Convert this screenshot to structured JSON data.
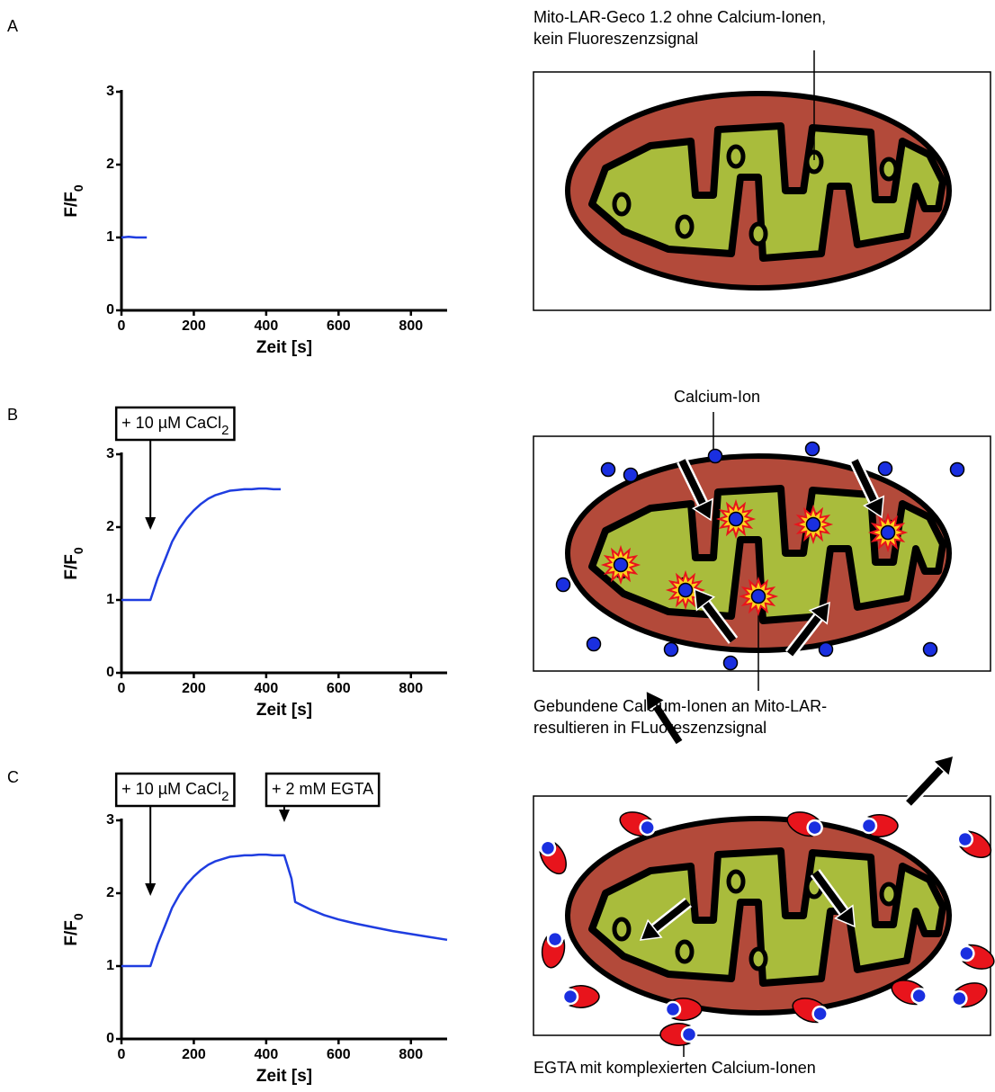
{
  "panel_labels": [
    "A",
    "B",
    "C"
  ],
  "chart_data": [
    {
      "type": "line",
      "xlabel": "Zeit [s]",
      "ylabel": "F/F",
      "ylabel_sub": "0",
      "xlim": [
        0,
        900
      ],
      "xticks": [
        0,
        200,
        400,
        600,
        800
      ],
      "ylim": [
        0,
        3
      ],
      "yticks": [
        0,
        1,
        2,
        3
      ],
      "series": [
        {
          "color": "#1f3de0",
          "x": [
            0,
            20,
            40,
            60,
            70
          ],
          "values": [
            1,
            1.01,
            1,
            1,
            1
          ]
        }
      ],
      "annotations": []
    },
    {
      "type": "line",
      "xlabel": "Zeit [s]",
      "ylabel": "F/F",
      "ylabel_sub": "0",
      "xlim": [
        0,
        900
      ],
      "xticks": [
        0,
        200,
        400,
        600,
        800
      ],
      "ylim": [
        0,
        3
      ],
      "yticks": [
        0,
        1,
        2,
        3
      ],
      "series": [
        {
          "color": "#1f3de0",
          "x": [
            0,
            40,
            80,
            100,
            120,
            140,
            160,
            180,
            200,
            220,
            240,
            260,
            280,
            300,
            320,
            340,
            360,
            380,
            400,
            420,
            440
          ],
          "values": [
            1,
            1,
            1,
            1.3,
            1.55,
            1.8,
            1.98,
            2.12,
            2.23,
            2.32,
            2.39,
            2.44,
            2.47,
            2.5,
            2.51,
            2.52,
            2.52,
            2.53,
            2.53,
            2.52,
            2.52
          ]
        }
      ],
      "annotations": [
        {
          "text": "+ 10 µM CaCl",
          "sub": "2",
          "x": 80
        }
      ]
    },
    {
      "type": "line",
      "xlabel": "Zeit [s]",
      "ylabel": "F/F",
      "ylabel_sub": "0",
      "xlim": [
        0,
        900
      ],
      "xticks": [
        0,
        200,
        400,
        600,
        800
      ],
      "ylim": [
        0,
        3
      ],
      "yticks": [
        0,
        1,
        2,
        3
      ],
      "series": [
        {
          "color": "#1f3de0",
          "x": [
            0,
            40,
            80,
            100,
            120,
            140,
            160,
            180,
            200,
            220,
            240,
            260,
            280,
            300,
            320,
            340,
            360,
            380,
            400,
            420,
            440,
            450,
            470,
            480,
            520,
            560,
            600,
            650,
            700,
            750,
            800,
            850,
            900
          ],
          "values": [
            1,
            1,
            1,
            1.3,
            1.55,
            1.8,
            1.98,
            2.12,
            2.23,
            2.32,
            2.39,
            2.44,
            2.47,
            2.5,
            2.51,
            2.52,
            2.52,
            2.53,
            2.53,
            2.52,
            2.52,
            2.52,
            2.2,
            1.88,
            1.78,
            1.7,
            1.64,
            1.58,
            1.53,
            1.48,
            1.44,
            1.4,
            1.36
          ]
        }
      ],
      "annotations": [
        {
          "text": "+ 10 µM CaCl",
          "sub": "2",
          "x": 80
        },
        {
          "text": "+ 2 mM EGTA",
          "x": 450
        }
      ]
    }
  ],
  "diagrams": [
    {
      "top_text": [
        "Mito-LAR-Geco 1.2 ohne Calcium-Ionen,",
        "kein Fluoreszenzsignal"
      ]
    },
    {
      "top_text": [
        "Calcium-Ion"
      ],
      "bottom_text": [
        "Gebundene Calcium-Ionen an Mito-LAR-",
        "resultieren in FLuoreszenzsignal"
      ]
    },
    {
      "bottom_text": [
        "EGTA mit komplexierten Calcium-Ionen"
      ]
    }
  ]
}
